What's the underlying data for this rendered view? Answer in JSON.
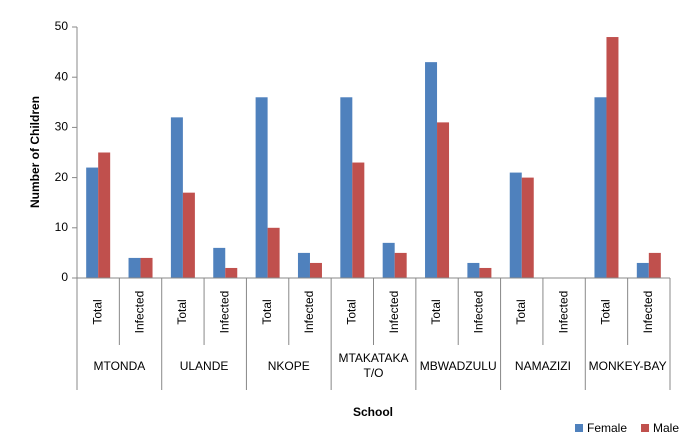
{
  "chart_data": {
    "type": "bar",
    "x_label": "School",
    "y_label": "Number of Children",
    "categories": [
      "Total",
      "Infected",
      "Total",
      "Infected",
      "Total",
      "Infected",
      "Total",
      "Infected",
      "Total",
      "Infected",
      "Total",
      "Infected",
      "Total",
      "Infected"
    ],
    "groups": [
      "MTONDA",
      "ULANDE",
      "NKOPE",
      "MTAKATAKA T/O",
      "MBWADZULU",
      "NAMAZIZI",
      "MONKEY-BAY"
    ],
    "series": [
      {
        "name": "Female",
        "color": "#4f81bd",
        "values": [
          22,
          4,
          32,
          6,
          36,
          5,
          36,
          7,
          43,
          3,
          21,
          0,
          36,
          3
        ]
      },
      {
        "name": "Male",
        "color": "#c0504d",
        "values": [
          25,
          4,
          17,
          2,
          10,
          3,
          23,
          5,
          31,
          2,
          20,
          0,
          48,
          5
        ]
      }
    ],
    "ylim": [
      0,
      50
    ],
    "yticks": [
      0,
      10,
      20,
      30,
      40,
      50
    ],
    "grid": false,
    "legend": "bottom-right"
  }
}
